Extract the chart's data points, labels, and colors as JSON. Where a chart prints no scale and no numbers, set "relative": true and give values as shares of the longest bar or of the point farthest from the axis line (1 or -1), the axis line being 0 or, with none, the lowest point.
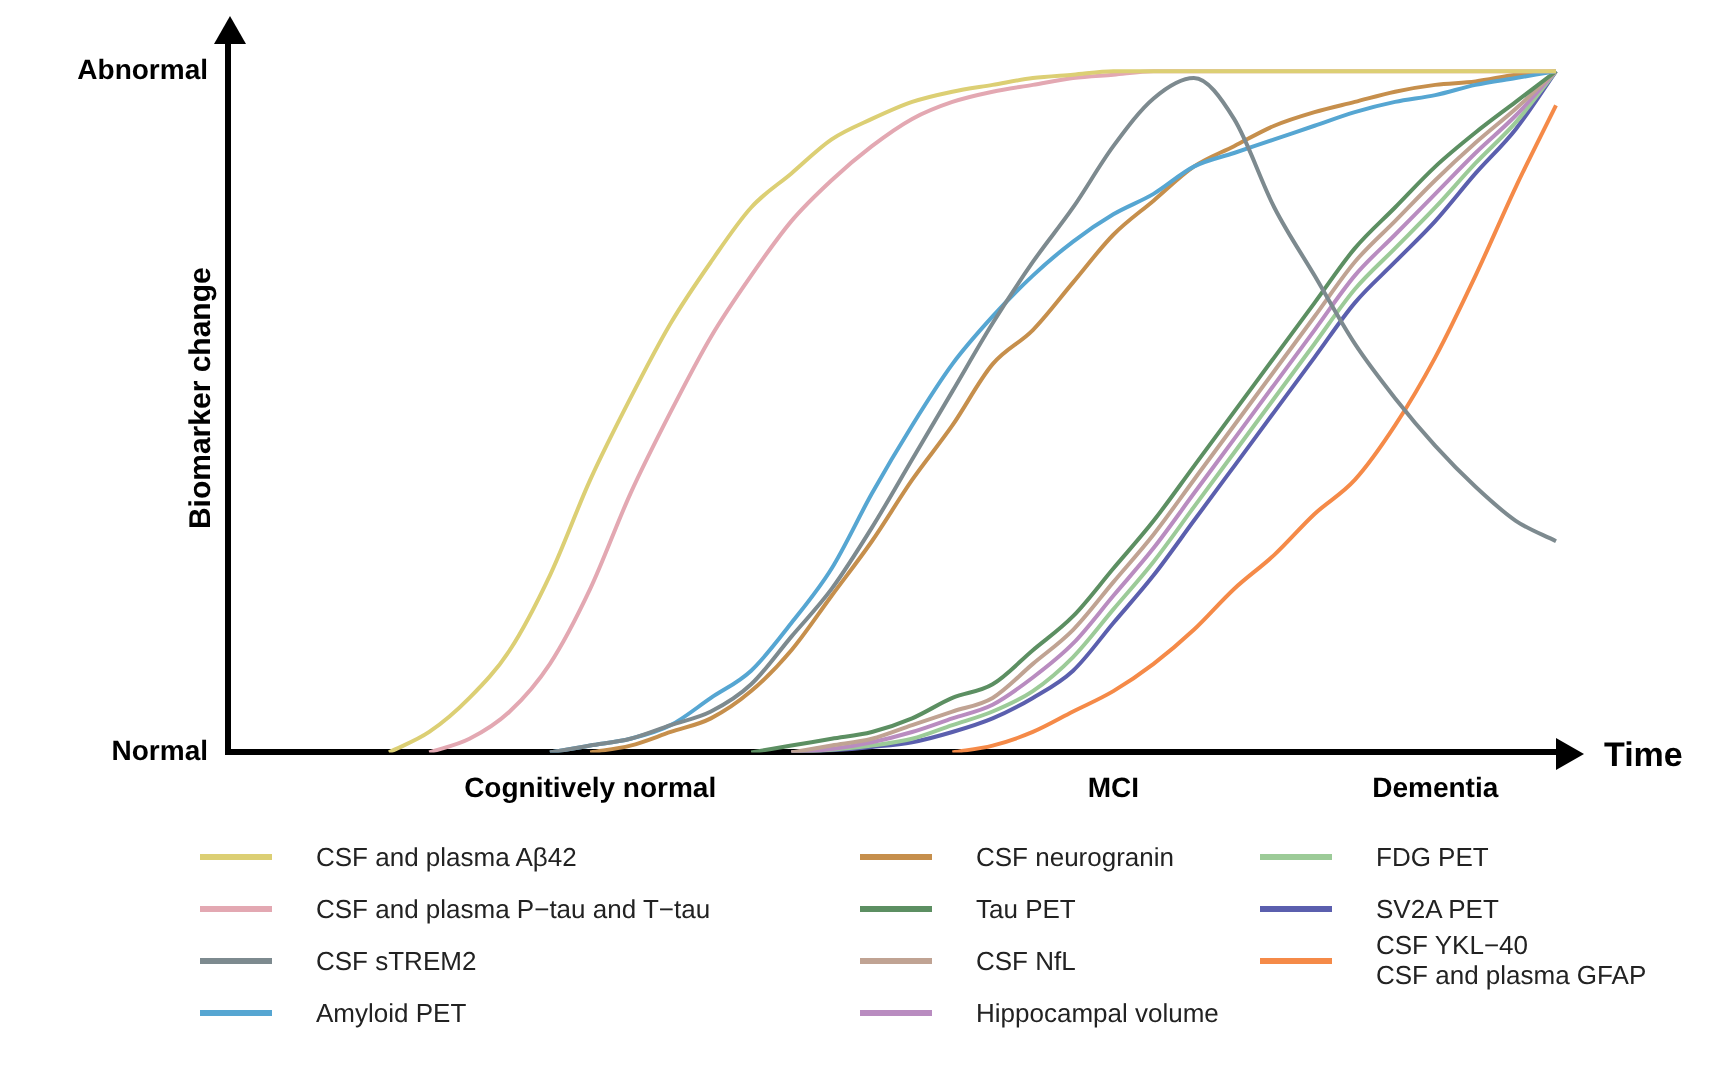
{
  "chart_data": {
    "type": "line",
    "ylabel": "Biomarker change",
    "xlabel": "Time",
    "relative": true,
    "categories": [
      null,
      null,
      null,
      null,
      null,
      null,
      null,
      null,
      null,
      "Cognitively normal",
      null,
      null,
      null,
      null,
      null,
      null,
      null,
      null,
      null,
      null,
      null,
      null,
      "MCI",
      null,
      null,
      null,
      null,
      null,
      null,
      null,
      "Dementia",
      null,
      null,
      null
    ],
    "annotations": [
      "Normal",
      "Abnormal"
    ],
    "legend": "bottom",
    "marker": "none",
    "series": [
      {
        "name": "CSF and plasma Aβ42",
        "color": "#dccf74",
        "values": [
          null,
          null,
          null,
          null,
          0,
          0.03,
          0.08,
          0.15,
          0.26,
          0.4,
          0.52,
          0.63,
          0.72,
          0.8,
          0.85,
          0.9,
          0.93,
          0.955,
          0.97,
          0.98,
          0.99,
          0.995,
          1,
          1,
          1,
          1,
          1,
          1,
          1,
          1,
          1,
          1,
          1,
          1
        ]
      },
      {
        "name": "CSF and plasma P−tau and T−tau",
        "color": "#e3a8b2",
        "values": [
          null,
          null,
          null,
          null,
          null,
          0,
          0.02,
          0.06,
          0.13,
          0.24,
          0.38,
          0.5,
          0.61,
          0.7,
          0.78,
          0.84,
          0.89,
          0.93,
          0.955,
          0.97,
          0.98,
          0.99,
          0.995,
          1,
          1,
          1,
          1,
          1,
          1,
          1,
          1,
          1,
          1,
          1
        ]
      },
      {
        "name": "CSF sTREM2",
        "color": "#7d8a8f",
        "values": [
          null,
          null,
          null,
          null,
          null,
          null,
          null,
          null,
          0,
          0.01,
          0.02,
          0.04,
          0.06,
          0.1,
          0.17,
          0.24,
          0.33,
          0.43,
          0.53,
          0.63,
          0.72,
          0.8,
          0.89,
          0.96,
          0.99,
          0.93,
          0.8,
          0.7,
          0.6,
          0.52,
          0.45,
          0.39,
          0.34,
          0.31
        ]
      },
      {
        "name": "Amyloid PET",
        "color": "#56a6d2",
        "values": [
          null,
          null,
          null,
          null,
          null,
          null,
          null,
          null,
          0,
          0.01,
          0.02,
          0.04,
          0.08,
          0.12,
          0.19,
          0.27,
          0.38,
          0.48,
          0.57,
          0.64,
          0.7,
          0.75,
          0.79,
          0.82,
          0.86,
          0.88,
          0.9,
          0.92,
          0.94,
          0.955,
          0.965,
          0.98,
          0.99,
          1
        ]
      },
      {
        "name": "CSF neurogranin",
        "color": "#c68f4c",
        "values": [
          null,
          null,
          null,
          null,
          null,
          null,
          null,
          null,
          null,
          0,
          0.01,
          0.03,
          0.05,
          0.09,
          0.15,
          0.23,
          0.31,
          0.4,
          0.48,
          0.57,
          0.62,
          0.69,
          0.76,
          0.81,
          0.86,
          0.89,
          0.92,
          0.94,
          0.955,
          0.97,
          0.98,
          0.985,
          0.995,
          1
        ]
      },
      {
        "name": "Tau PET",
        "color": "#5c8f62",
        "values": [
          null,
          null,
          null,
          null,
          null,
          null,
          null,
          null,
          null,
          null,
          null,
          null,
          null,
          0,
          0.01,
          0.02,
          0.03,
          0.05,
          0.08,
          0.1,
          0.15,
          0.2,
          0.27,
          0.34,
          0.42,
          0.5,
          0.58,
          0.66,
          0.74,
          0.8,
          0.86,
          0.91,
          0.955,
          1
        ]
      },
      {
        "name": "CSF NfL",
        "color": "#c0a393",
        "values": [
          null,
          null,
          null,
          null,
          null,
          null,
          null,
          null,
          null,
          null,
          null,
          null,
          null,
          null,
          0,
          0.01,
          0.02,
          0.04,
          0.06,
          0.08,
          0.13,
          0.18,
          0.25,
          0.32,
          0.4,
          0.48,
          0.56,
          0.64,
          0.72,
          0.78,
          0.84,
          0.895,
          0.945,
          1
        ]
      },
      {
        "name": "Hippocampal volume",
        "color": "#b98cc0",
        "values": [
          null,
          null,
          null,
          null,
          null,
          null,
          null,
          null,
          null,
          null,
          null,
          null,
          null,
          null,
          0,
          0.005,
          0.015,
          0.03,
          0.05,
          0.07,
          0.11,
          0.16,
          0.23,
          0.3,
          0.38,
          0.46,
          0.54,
          0.62,
          0.7,
          0.76,
          0.82,
          0.88,
          0.935,
          1
        ]
      },
      {
        "name": "FDG PET",
        "color": "#9ccb98",
        "values": [
          null,
          null,
          null,
          null,
          null,
          null,
          null,
          null,
          null,
          null,
          null,
          null,
          null,
          null,
          0,
          0.004,
          0.01,
          0.02,
          0.04,
          0.06,
          0.09,
          0.14,
          0.21,
          0.28,
          0.36,
          0.44,
          0.52,
          0.6,
          0.68,
          0.74,
          0.8,
          0.865,
          0.925,
          1
        ]
      },
      {
        "name": "SV2A PET",
        "color": "#5b5fae",
        "values": [
          null,
          null,
          null,
          null,
          null,
          null,
          null,
          null,
          null,
          null,
          null,
          null,
          null,
          null,
          0,
          0.003,
          0.008,
          0.015,
          0.03,
          0.05,
          0.08,
          0.12,
          0.19,
          0.26,
          0.34,
          0.42,
          0.5,
          0.58,
          0.66,
          0.72,
          0.78,
          0.85,
          0.915,
          1
        ]
      },
      {
        "name": "CSF YKL−40\nCSF and plasma GFAP",
        "color": "#f58a48",
        "values": [
          null,
          null,
          null,
          null,
          null,
          null,
          null,
          null,
          null,
          null,
          null,
          null,
          null,
          null,
          null,
          null,
          null,
          null,
          0,
          0.01,
          0.03,
          0.06,
          0.09,
          0.13,
          0.18,
          0.24,
          0.29,
          0.35,
          0.4,
          0.48,
          0.58,
          0.7,
          0.83,
          0.95
        ]
      }
    ]
  }
}
